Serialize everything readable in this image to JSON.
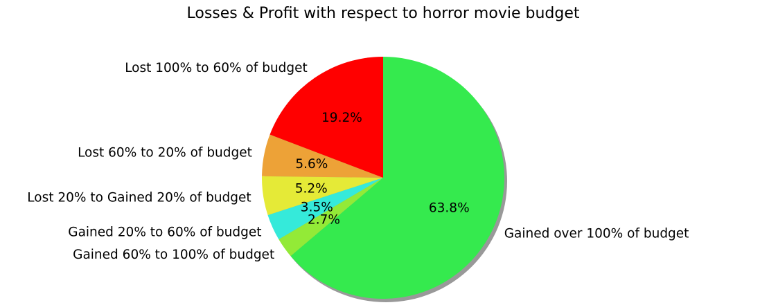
{
  "chart_data": {
    "type": "pie",
    "title": "Losses & Profit with respect to horror movie budget",
    "shadow": true,
    "start_angle_deg": 90,
    "direction": "counterclockwise",
    "slices": [
      {
        "label": "Lost 100% to 60% of budget",
        "value": 19.2,
        "pct_label": "19.2%",
        "color": "#ff0000"
      },
      {
        "label": "Lost 60% to 20% of budget",
        "value": 5.6,
        "pct_label": "5.6%",
        "color": "#eda237"
      },
      {
        "label": "Lost 20% to Gained 20% of budget",
        "value": 5.2,
        "pct_label": "5.2%",
        "color": "#e5ea37"
      },
      {
        "label": "Gained 20% to 60% of budget",
        "value": 3.5,
        "pct_label": "3.5%",
        "color": "#35eada"
      },
      {
        "label": "Gained 60% to 100% of budget",
        "value": 2.7,
        "pct_label": "2.7%",
        "color": "#93ea37"
      },
      {
        "label": "Gained over 100% of budget",
        "value": 63.8,
        "pct_label": "63.8%",
        "color": "#35ea4e"
      }
    ]
  }
}
